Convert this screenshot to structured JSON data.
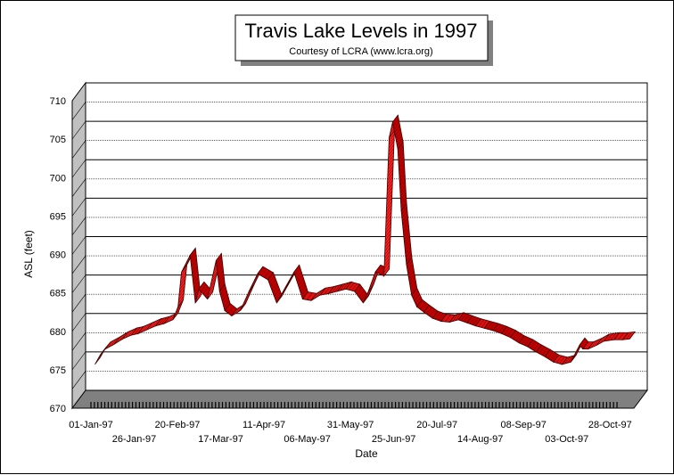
{
  "chart_data": {
    "type": "line",
    "title": "Travis Lake Levels in 1997",
    "subtitle": "Courtesy of LCRA (www.lcra.org)",
    "xlabel": "Date",
    "ylabel": "ASL (feet)",
    "ylim": [
      670,
      710
    ],
    "y_ticks": [
      "670",
      "675",
      "680",
      "685",
      "690",
      "695",
      "700",
      "705",
      "710"
    ],
    "x_tick_labels_upper": [
      "01-Jan-97",
      "20-Feb-97",
      "11-Apr-97",
      "31-May-97",
      "20-Jul-97",
      "08-Sep-97",
      "28-Oct-97"
    ],
    "x_tick_labels_lower": [
      "26-Jan-97",
      "17-Mar-97",
      "06-May-97",
      "25-Jun-97",
      "14-Aug-97",
      "03-Oct-97"
    ],
    "grid": true,
    "legend": "none",
    "style": "3d ribbon",
    "series_color": "#ff0000",
    "x": [
      "01-Jan-97",
      "04-Jan-97",
      "07-Jan-97",
      "12-Jan-97",
      "17-Jan-97",
      "22-Jan-97",
      "26-Jan-97",
      "31-Jan-97",
      "05-Feb-97",
      "10-Feb-97",
      "15-Feb-97",
      "18-Feb-97",
      "20-Feb-97",
      "25-Feb-97",
      "28-Feb-97",
      "02-Mar-97",
      "07-Mar-97",
      "12-Mar-97",
      "14-Mar-97",
      "17-Mar-97",
      "21-Mar-97",
      "26-Mar-97",
      "31-Mar-97",
      "05-Apr-97",
      "11-Apr-97",
      "16-Apr-97",
      "21-Apr-97",
      "26-Apr-97",
      "01-May-97",
      "06-May-97",
      "11-May-97",
      "16-May-97",
      "21-May-97",
      "26-May-97",
      "31-May-97",
      "05-Jun-97",
      "08-Jun-97",
      "12-Jun-97",
      "17-Jun-97",
      "20-Jun-97",
      "22-Jun-97",
      "25-Jun-97",
      "27-Jun-97",
      "30-Jun-97",
      "03-Jul-97",
      "06-Jul-97",
      "10-Jul-97",
      "15-Jul-97",
      "20-Jul-97",
      "25-Jul-97",
      "30-Jul-97",
      "04-Aug-97",
      "09-Aug-97",
      "14-Aug-97",
      "19-Aug-97",
      "24-Aug-97",
      "29-Aug-97",
      "03-Sep-97",
      "08-Sep-97",
      "13-Sep-97",
      "18-Sep-97",
      "23-Sep-97",
      "28-Sep-97",
      "03-Oct-97",
      "08-Oct-97",
      "10-Oct-97",
      "13-Oct-97",
      "18-Oct-97",
      "22-Oct-97",
      "28-Oct-97",
      "02-Nov-97",
      "06-Nov-97"
    ],
    "values": [
      675.0,
      676.2,
      677.0,
      677.6,
      678.3,
      678.8,
      679.0,
      679.5,
      680.0,
      680.3,
      680.8,
      682.5,
      687.0,
      689.2,
      683.0,
      684.8,
      683.5,
      688.5,
      684.5,
      682.0,
      681.3,
      682.0,
      684.5,
      686.8,
      686.0,
      683.0,
      685.0,
      687.0,
      683.5,
      683.3,
      684.0,
      684.2,
      684.5,
      684.8,
      684.5,
      683.0,
      684.5,
      687.0,
      686.5,
      704.5,
      706.5,
      703.0,
      695.0,
      688.0,
      684.0,
      682.5,
      681.8,
      681.0,
      680.6,
      680.5,
      680.8,
      680.4,
      680.0,
      679.7,
      679.4,
      679.0,
      678.5,
      677.8,
      677.3,
      676.6,
      676.0,
      675.3,
      675.0,
      675.3,
      677.5,
      677.0,
      677.0,
      677.5,
      678.0,
      678.2,
      678.2,
      678.3
    ]
  }
}
